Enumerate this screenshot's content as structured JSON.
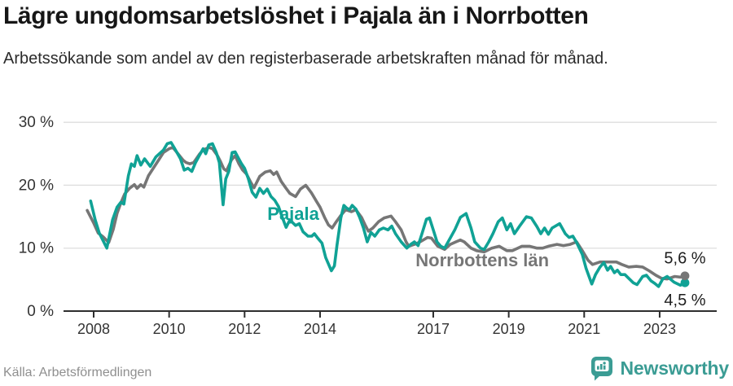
{
  "header": {
    "title": "Lägre ungdomsarbetslöshet i Pajala än i Norrbotten",
    "subtitle": "Arbetssökande som andel av den registerbaserade arbetskraften månad för månad."
  },
  "chart_data": {
    "type": "line",
    "title": "Lägre ungdomsarbetslöshet i Pajala än i Norrbotten",
    "unit": "%",
    "grid": true,
    "legend_position": "inline-labels",
    "x_axis": {
      "ticks": [
        2008,
        2010,
        2012,
        2014,
        2017,
        2019,
        2021,
        2023
      ],
      "labels": [
        "2008",
        "2010",
        "2012",
        "2014",
        "2017",
        "2019",
        "2021",
        "2023"
      ],
      "range": [
        2007.7,
        2024.4
      ]
    },
    "y_axis": {
      "ticks": [
        0,
        10,
        20,
        30
      ],
      "labels": [
        "0 %",
        "10 %",
        "20 %",
        "30 %"
      ],
      "range": [
        0,
        31.5
      ]
    },
    "series": [
      {
        "name": "Pajala",
        "color": "#10a295",
        "end_label": "4,5 %",
        "end_value": 4.5,
        "end_label_offset": 28,
        "line_label": {
          "text": "Pajala",
          "at": [
            2013.29,
            14.5
          ]
        },
        "points": [
          [
            2007.92,
            17.5
          ],
          [
            2008.04,
            14.5
          ],
          [
            2008.15,
            12.4
          ],
          [
            2008.35,
            10.0
          ],
          [
            2008.5,
            14.5
          ],
          [
            2008.62,
            16.5
          ],
          [
            2008.72,
            17.3
          ],
          [
            2008.8,
            17.0
          ],
          [
            2008.92,
            21.5
          ],
          [
            2009.0,
            23.4
          ],
          [
            2009.08,
            23.0
          ],
          [
            2009.15,
            24.7
          ],
          [
            2009.25,
            23.2
          ],
          [
            2009.35,
            24.2
          ],
          [
            2009.5,
            23.0
          ],
          [
            2009.65,
            24.5
          ],
          [
            2009.85,
            25.6
          ],
          [
            2009.95,
            26.6
          ],
          [
            2010.05,
            26.8
          ],
          [
            2010.15,
            25.8
          ],
          [
            2010.3,
            24.2
          ],
          [
            2010.4,
            22.4
          ],
          [
            2010.5,
            22.7
          ],
          [
            2010.6,
            22.2
          ],
          [
            2010.7,
            23.6
          ],
          [
            2010.8,
            24.7
          ],
          [
            2010.9,
            25.8
          ],
          [
            2010.97,
            25.0
          ],
          [
            2011.05,
            26.4
          ],
          [
            2011.15,
            26.6
          ],
          [
            2011.25,
            25.2
          ],
          [
            2011.33,
            23.6
          ],
          [
            2011.43,
            16.9
          ],
          [
            2011.5,
            21.0
          ],
          [
            2011.58,
            22.2
          ],
          [
            2011.67,
            25.2
          ],
          [
            2011.75,
            25.3
          ],
          [
            2011.83,
            24.4
          ],
          [
            2011.92,
            23.4
          ],
          [
            2012.0,
            22.7
          ],
          [
            2012.1,
            21.0
          ],
          [
            2012.2,
            18.9
          ],
          [
            2012.3,
            18.1
          ],
          [
            2012.4,
            19.5
          ],
          [
            2012.5,
            18.7
          ],
          [
            2012.6,
            19.4
          ],
          [
            2012.7,
            18.2
          ],
          [
            2012.8,
            17.6
          ],
          [
            2012.9,
            16.6
          ],
          [
            2013.0,
            14.9
          ],
          [
            2013.1,
            13.3
          ],
          [
            2013.2,
            14.5
          ],
          [
            2013.35,
            13.6
          ],
          [
            2013.45,
            13.9
          ],
          [
            2013.55,
            12.6
          ],
          [
            2013.68,
            11.9
          ],
          [
            2013.78,
            11.9
          ],
          [
            2013.85,
            12.3
          ],
          [
            2013.95,
            11.5
          ],
          [
            2014.05,
            10.8
          ],
          [
            2014.15,
            8.5
          ],
          [
            2014.3,
            6.4
          ],
          [
            2014.38,
            7.2
          ],
          [
            2014.45,
            10.5
          ],
          [
            2014.55,
            14.8
          ],
          [
            2014.63,
            16.8
          ],
          [
            2014.7,
            16.4
          ],
          [
            2014.78,
            16.1
          ],
          [
            2014.85,
            16.8
          ],
          [
            2014.95,
            16.2
          ],
          [
            2015.05,
            14.9
          ],
          [
            2015.15,
            13.2
          ],
          [
            2015.25,
            11.0
          ],
          [
            2015.35,
            12.5
          ],
          [
            2015.45,
            11.9
          ],
          [
            2015.57,
            12.9
          ],
          [
            2015.68,
            13.2
          ],
          [
            2015.8,
            12.9
          ],
          [
            2015.9,
            13.5
          ],
          [
            2016.0,
            12.3
          ],
          [
            2016.15,
            11.0
          ],
          [
            2016.3,
            10.0
          ],
          [
            2016.4,
            10.6
          ],
          [
            2016.5,
            11.0
          ],
          [
            2016.6,
            10.4
          ],
          [
            2016.7,
            12.3
          ],
          [
            2016.82,
            14.6
          ],
          [
            2016.9,
            14.8
          ],
          [
            2017.0,
            12.9
          ],
          [
            2017.1,
            11.0
          ],
          [
            2017.2,
            10.3
          ],
          [
            2017.3,
            10.0
          ],
          [
            2017.45,
            11.6
          ],
          [
            2017.57,
            12.9
          ],
          [
            2017.72,
            14.9
          ],
          [
            2017.87,
            15.5
          ],
          [
            2018.0,
            13.2
          ],
          [
            2018.1,
            11.0
          ],
          [
            2018.25,
            10.0
          ],
          [
            2018.35,
            9.8
          ],
          [
            2018.47,
            11.0
          ],
          [
            2018.58,
            12.3
          ],
          [
            2018.72,
            14.2
          ],
          [
            2018.83,
            14.8
          ],
          [
            2018.95,
            12.9
          ],
          [
            2019.05,
            13.9
          ],
          [
            2019.15,
            12.3
          ],
          [
            2019.3,
            13.6
          ],
          [
            2019.47,
            15.0
          ],
          [
            2019.6,
            14.8
          ],
          [
            2019.75,
            13.4
          ],
          [
            2019.85,
            12.3
          ],
          [
            2019.95,
            13.2
          ],
          [
            2020.05,
            12.2
          ],
          [
            2020.15,
            13.2
          ],
          [
            2020.35,
            13.9
          ],
          [
            2020.5,
            12.3
          ],
          [
            2020.6,
            11.7
          ],
          [
            2020.7,
            11.9
          ],
          [
            2020.8,
            10.9
          ],
          [
            2020.95,
            9.0
          ],
          [
            2021.05,
            6.8
          ],
          [
            2021.2,
            4.3
          ],
          [
            2021.3,
            5.8
          ],
          [
            2021.42,
            7.0
          ],
          [
            2021.52,
            7.7
          ],
          [
            2021.62,
            6.5
          ],
          [
            2021.7,
            7.1
          ],
          [
            2021.8,
            6.1
          ],
          [
            2021.88,
            6.5
          ],
          [
            2021.97,
            5.8
          ],
          [
            2022.08,
            5.8
          ],
          [
            2022.18,
            5.2
          ],
          [
            2022.3,
            4.5
          ],
          [
            2022.4,
            4.2
          ],
          [
            2022.55,
            5.5
          ],
          [
            2022.65,
            5.7
          ],
          [
            2022.77,
            4.8
          ],
          [
            2022.87,
            4.4
          ],
          [
            2022.97,
            3.9
          ],
          [
            2023.08,
            5.1
          ],
          [
            2023.2,
            5.5
          ],
          [
            2023.38,
            4.6
          ],
          [
            2023.55,
            4.1
          ],
          [
            2023.67,
            4.5
          ]
        ]
      },
      {
        "name": "Norrbottens län",
        "color": "#767676",
        "end_label": "5,6 %",
        "end_value": 5.6,
        "end_label_offset": -15,
        "line_label": {
          "text": "Norrbottens län",
          "at": [
            2018.3,
            7.1
          ]
        },
        "points": [
          [
            2007.83,
            16.0
          ],
          [
            2008.0,
            14.0
          ],
          [
            2008.12,
            12.4
          ],
          [
            2008.25,
            11.8
          ],
          [
            2008.4,
            10.9
          ],
          [
            2008.52,
            13.0
          ],
          [
            2008.62,
            15.5
          ],
          [
            2008.72,
            17.2
          ],
          [
            2008.82,
            18.6
          ],
          [
            2008.95,
            19.5
          ],
          [
            2009.08,
            20.1
          ],
          [
            2009.15,
            19.5
          ],
          [
            2009.25,
            20.1
          ],
          [
            2009.33,
            19.7
          ],
          [
            2009.45,
            21.5
          ],
          [
            2009.58,
            22.7
          ],
          [
            2009.72,
            24.0
          ],
          [
            2009.85,
            25.2
          ],
          [
            2010.0,
            25.8
          ],
          [
            2010.1,
            26.0
          ],
          [
            2010.25,
            24.9
          ],
          [
            2010.37,
            24.0
          ],
          [
            2010.45,
            23.6
          ],
          [
            2010.55,
            23.4
          ],
          [
            2010.65,
            23.6
          ],
          [
            2010.8,
            24.9
          ],
          [
            2010.9,
            25.6
          ],
          [
            2011.05,
            26.0
          ],
          [
            2011.15,
            25.8
          ],
          [
            2011.28,
            24.7
          ],
          [
            2011.35,
            23.9
          ],
          [
            2011.45,
            22.6
          ],
          [
            2011.52,
            22.3
          ],
          [
            2011.65,
            24.0
          ],
          [
            2011.75,
            24.7
          ],
          [
            2011.85,
            23.4
          ],
          [
            2011.95,
            22.4
          ],
          [
            2012.05,
            21.8
          ],
          [
            2012.17,
            20.4
          ],
          [
            2012.25,
            19.6
          ],
          [
            2012.4,
            21.4
          ],
          [
            2012.55,
            22.1
          ],
          [
            2012.68,
            22.3
          ],
          [
            2012.77,
            21.7
          ],
          [
            2012.85,
            22.1
          ],
          [
            2012.97,
            20.6
          ],
          [
            2013.1,
            19.5
          ],
          [
            2013.2,
            18.7
          ],
          [
            2013.35,
            18.2
          ],
          [
            2013.48,
            19.4
          ],
          [
            2013.62,
            20.0
          ],
          [
            2013.77,
            18.8
          ],
          [
            2013.9,
            17.5
          ],
          [
            2014.0,
            16.5
          ],
          [
            2014.12,
            14.9
          ],
          [
            2014.22,
            13.7
          ],
          [
            2014.32,
            13.2
          ],
          [
            2014.43,
            14.2
          ],
          [
            2014.55,
            15.2
          ],
          [
            2014.68,
            16.1
          ],
          [
            2014.83,
            15.8
          ],
          [
            2014.95,
            16.1
          ],
          [
            2015.1,
            14.9
          ],
          [
            2015.2,
            13.6
          ],
          [
            2015.28,
            12.7
          ],
          [
            2015.4,
            13.2
          ],
          [
            2015.55,
            14.2
          ],
          [
            2015.7,
            14.8
          ],
          [
            2015.88,
            15.1
          ],
          [
            2016.0,
            14.2
          ],
          [
            2016.15,
            12.9
          ],
          [
            2016.28,
            11.0
          ],
          [
            2016.35,
            10.3
          ],
          [
            2016.5,
            10.6
          ],
          [
            2016.65,
            11.0
          ],
          [
            2016.85,
            11.7
          ],
          [
            2016.95,
            11.6
          ],
          [
            2017.12,
            10.3
          ],
          [
            2017.3,
            9.8
          ],
          [
            2017.45,
            10.6
          ],
          [
            2017.6,
            11.0
          ],
          [
            2017.72,
            11.3
          ],
          [
            2017.82,
            11.0
          ],
          [
            2018.0,
            10.0
          ],
          [
            2018.15,
            9.6
          ],
          [
            2018.35,
            9.4
          ],
          [
            2018.55,
            10.0
          ],
          [
            2018.75,
            10.3
          ],
          [
            2018.95,
            9.6
          ],
          [
            2019.1,
            9.6
          ],
          [
            2019.35,
            10.3
          ],
          [
            2019.55,
            10.3
          ],
          [
            2019.75,
            10.0
          ],
          [
            2019.9,
            10.0
          ],
          [
            2020.05,
            10.3
          ],
          [
            2020.28,
            10.6
          ],
          [
            2020.45,
            10.4
          ],
          [
            2020.63,
            10.6
          ],
          [
            2020.8,
            11.0
          ],
          [
            2020.95,
            9.6
          ],
          [
            2021.1,
            8.1
          ],
          [
            2021.22,
            7.4
          ],
          [
            2021.42,
            7.8
          ],
          [
            2021.62,
            7.8
          ],
          [
            2021.85,
            7.8
          ],
          [
            2022.0,
            7.4
          ],
          [
            2022.18,
            7.0
          ],
          [
            2022.38,
            7.1
          ],
          [
            2022.55,
            7.0
          ],
          [
            2022.72,
            6.4
          ],
          [
            2022.9,
            5.7
          ],
          [
            2023.05,
            5.2
          ],
          [
            2023.2,
            5.1
          ],
          [
            2023.4,
            5.5
          ],
          [
            2023.55,
            5.4
          ],
          [
            2023.67,
            5.6
          ]
        ]
      }
    ]
  },
  "footer": {
    "source": "Källa: Arbetsförmedlingen",
    "brand": "Newsworthy",
    "brand_color": "#3b9c94"
  }
}
